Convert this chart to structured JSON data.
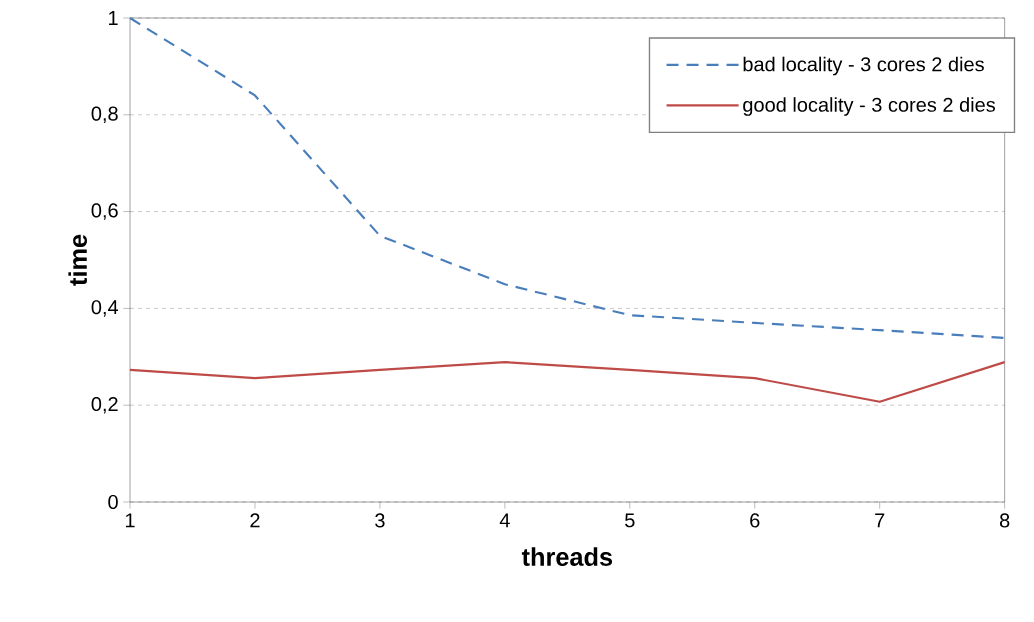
{
  "chart_data": {
    "type": "line",
    "xlabel": "threads",
    "ylabel": "time",
    "x": [
      1,
      2,
      3,
      4,
      5,
      6,
      7,
      8
    ],
    "series": [
      {
        "name": "bad locality - 3 cores 2 dies",
        "color": "#4a7ebb",
        "line_style": "dashed",
        "values": [
          1.0,
          0.84,
          0.55,
          0.45,
          0.386,
          0.37,
          0.355,
          0.339
        ]
      },
      {
        "name": "good locality - 3 cores 2 dies",
        "color": "#be4b48",
        "line_style": "solid",
        "values": [
          0.273,
          0.256,
          0.273,
          0.289,
          0.273,
          0.256,
          0.207,
          0.289
        ]
      }
    ],
    "xlim": [
      1,
      8
    ],
    "xticks": [
      1,
      2,
      3,
      4,
      5,
      6,
      7,
      8
    ],
    "ylim": [
      0,
      1
    ],
    "yticks": [
      0,
      {
        "value": 0.2,
        "label": "0,2"
      },
      {
        "value": 0.4,
        "label": "0,4"
      },
      {
        "value": 0.6,
        "label": "0,6"
      },
      {
        "value": 0.8,
        "label": "0,8"
      },
      1
    ],
    "grid": "y",
    "legend": "top right",
    "marker": "none"
  }
}
